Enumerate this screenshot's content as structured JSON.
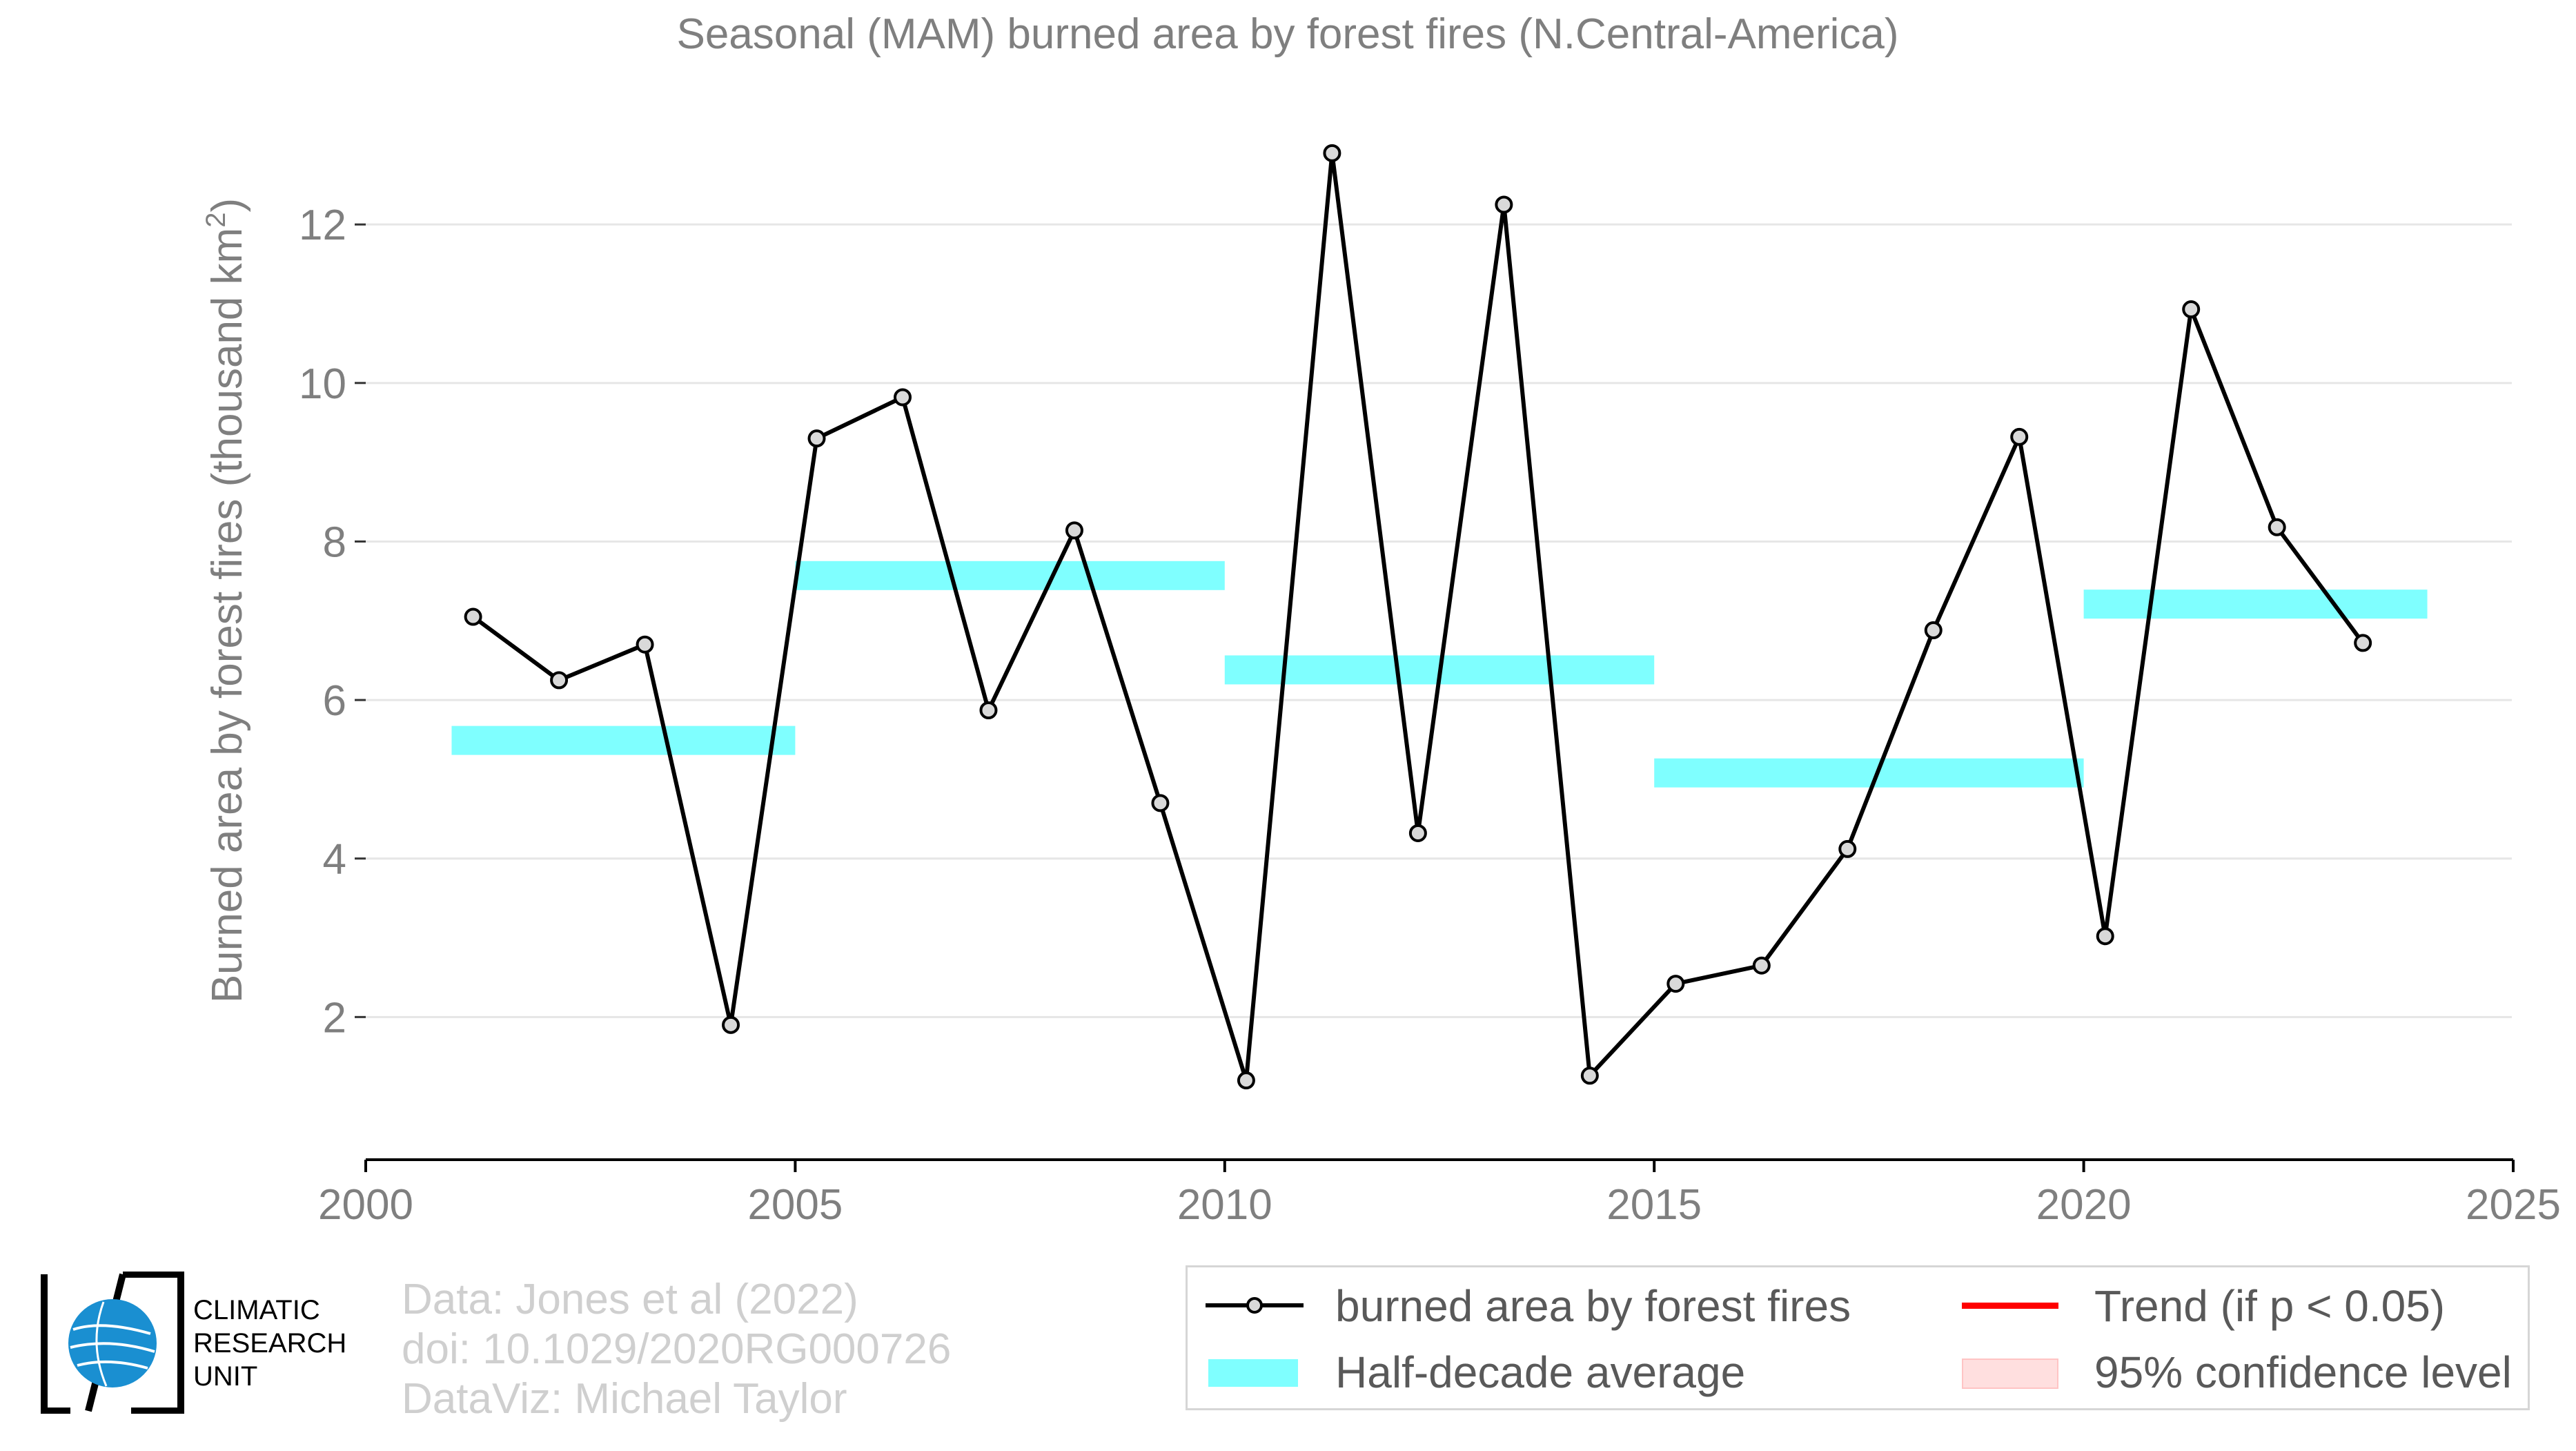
{
  "chart_data": {
    "type": "line",
    "title": "Seasonal (MAM) burned area by forest fires (N.Central-America)",
    "ylabel_main": "Burned area by forest fires (thousand km",
    "ylabel_sup": "2",
    "ylabel_end": ")",
    "xlim": [
      2000,
      2025
    ],
    "ylim": [
      0.2,
      13.7
    ],
    "x_ticks": [
      "2000",
      "2005",
      "2010",
      "2015",
      "2020",
      "2025"
    ],
    "y_ticks": [
      "2",
      "4",
      "6",
      "8",
      "10",
      "12"
    ],
    "grid": true,
    "series": [
      {
        "name": "burned area by forest fires",
        "color": "#000000",
        "marker_fill": "#d9d9d9",
        "x": [
          2001,
          2002,
          2003,
          2004,
          2005,
          2006,
          2007,
          2008,
          2009,
          2010,
          2011,
          2012,
          2013,
          2014,
          2015,
          2016,
          2017,
          2018,
          2019,
          2020,
          2021,
          2022,
          2023
        ],
        "values": [
          7.05,
          6.25,
          6.7,
          1.9,
          9.3,
          9.82,
          5.87,
          8.14,
          4.7,
          1.2,
          12.9,
          4.32,
          12.25,
          1.26,
          2.42,
          2.65,
          4.12,
          6.88,
          9.32,
          3.02,
          10.93,
          8.18,
          6.72
        ]
      }
    ],
    "half_decade_averages": {
      "name": "Half-decade average",
      "color": "#7fffff",
      "periods": [
        {
          "start": 2001,
          "end": 2005,
          "value": 5.49
        },
        {
          "start": 2005,
          "end": 2010,
          "value": 7.57
        },
        {
          "start": 2010,
          "end": 2015,
          "value": 6.38
        },
        {
          "start": 2015,
          "end": 2020,
          "value": 5.08
        },
        {
          "start": 2020,
          "end": 2024,
          "value": 7.21
        }
      ]
    }
  },
  "legend": {
    "series_label": "burned area by forest fires",
    "average_label": "Half-decade average",
    "trend_label": "Trend (if p < 0.05)",
    "confidence_label": "95% confidence level",
    "trend_color": "#ff0000",
    "confidence_color": "#ffdfdf"
  },
  "credits": {
    "data": "Data: Jones et al (2022)",
    "doi": "doi: 10.1029/2020RG000726",
    "dataviz": "DataViz: Michael Taylor"
  },
  "logo": {
    "line1": "CLIMATIC",
    "line2": "RESEARCH",
    "line3": "UNIT",
    "globe_color": "#1a8fd1"
  }
}
